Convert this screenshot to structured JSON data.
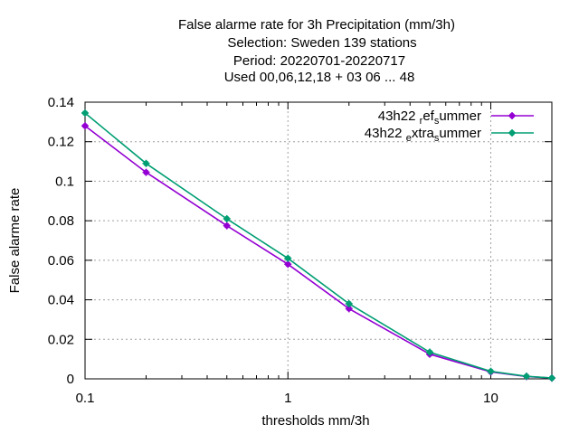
{
  "chart_data": {
    "type": "line",
    "title_lines": [
      "False alarme rate  for 3h Precipitation (mm/3h)",
      "Selection: Sweden    139 stations",
      "Period: 20220701-20220717",
      "Used  00,06,12,18  + 03 06 ... 48"
    ],
    "xlabel": "thresholds mm/3h",
    "ylabel": "False alarme rate",
    "x_scale": "log",
    "xlim": [
      0.1,
      20
    ],
    "ylim": [
      0,
      0.14
    ],
    "x_ticks": [
      0.1,
      1,
      10
    ],
    "x_tick_labels": [
      "0.1",
      "1",
      "10"
    ],
    "y_ticks": [
      0,
      0.02,
      0.04,
      0.06,
      0.08,
      0.1,
      0.12,
      0.14
    ],
    "y_tick_labels": [
      "0",
      "0.02",
      "0.04",
      "0.06",
      "0.08",
      "0.1",
      "0.12",
      "0.14"
    ],
    "grid": true,
    "legend_position": "top-right",
    "x": [
      0.1,
      0.2,
      0.5,
      1,
      2,
      5,
      10,
      15,
      20
    ],
    "series": [
      {
        "name": "43h22 ref summer",
        "legend_parts": {
          "a": "43h22 ",
          "sub1": "r",
          "b": "ef",
          "sub2": "s",
          "c": "ummer"
        },
        "color": "#9400d3",
        "values": [
          0.128,
          0.1045,
          0.0775,
          0.058,
          0.0355,
          0.0125,
          0.0035,
          0.0012,
          0.0004
        ]
      },
      {
        "name": "43h22 extra summer",
        "legend_parts": {
          "a": "43h22 ",
          "sub1": "e",
          "b": "xtra",
          "sub2": "s",
          "c": "ummer"
        },
        "color": "#009e73",
        "values": [
          0.1345,
          0.109,
          0.081,
          0.061,
          0.038,
          0.0135,
          0.0038,
          0.0013,
          0.0004
        ]
      }
    ]
  }
}
